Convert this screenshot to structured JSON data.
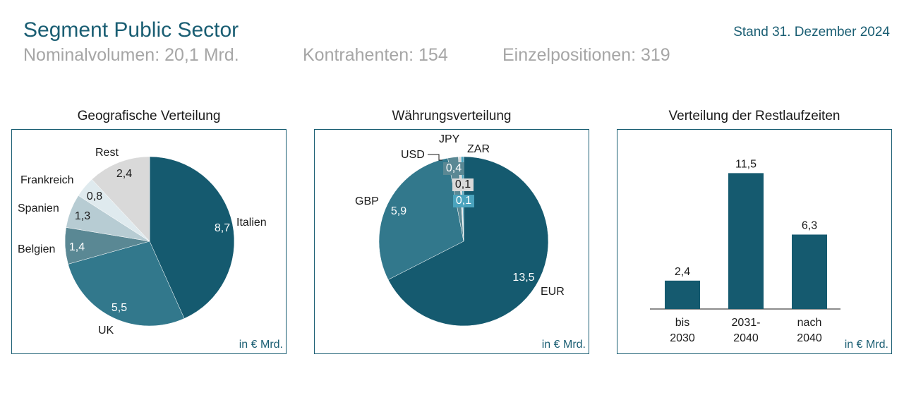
{
  "header": {
    "title": "Segment Public Sector",
    "date": "Stand 31. Dezember 2024",
    "nominal": "Nominalvolumen: 20,1 Mrd.",
    "counterparties": "Kontrahenten: 154",
    "positions": "Einzelpositionen: 319"
  },
  "panels": {
    "geo_title": "Geografische Verteilung",
    "fx_title": "Währungsverteilung",
    "mat_title": "Verteilung der Restlaufzeiten",
    "unit": "in € Mrd."
  },
  "chart_data": [
    {
      "type": "pie",
      "title": "Geografische Verteilung",
      "unit": "in € Mrd.",
      "slices": [
        {
          "label": "Italien",
          "value": 8.7,
          "value_label": "8,7",
          "color": "#155a6f"
        },
        {
          "label": "UK",
          "value": 5.5,
          "value_label": "5,5",
          "color": "#32788c"
        },
        {
          "label": "Belgien",
          "value": 1.4,
          "value_label": "1,4",
          "color": "#5a8894"
        },
        {
          "label": "Spanien",
          "value": 1.3,
          "value_label": "1,3",
          "color": "#b7ccd3"
        },
        {
          "label": "Frankreich",
          "value": 0.8,
          "value_label": "0,8",
          "color": "#dfeaee"
        },
        {
          "label": "Rest",
          "value": 2.4,
          "value_label": "2,4",
          "color": "#d9d9d9"
        }
      ]
    },
    {
      "type": "pie",
      "title": "Währungsverteilung",
      "unit": "in € Mrd.",
      "slices": [
        {
          "label": "EUR",
          "value": 13.5,
          "value_label": "13,5",
          "color": "#155a6f"
        },
        {
          "label": "GBP",
          "value": 5.9,
          "value_label": "5,9",
          "color": "#32788c"
        },
        {
          "label": "USD",
          "value": 0.4,
          "value_label": "0,4",
          "color": "#5a8894"
        },
        {
          "label": "JPY",
          "value": 0.1,
          "value_label": "0,1",
          "color": "#d9d9d9"
        },
        {
          "label": "ZAR",
          "value": 0.1,
          "value_label": "0,1",
          "color": "#4aa3bd"
        }
      ]
    },
    {
      "type": "bar",
      "title": "Verteilung der Restlaufzeiten",
      "unit": "in € Mrd.",
      "categories": [
        [
          "bis",
          "2030"
        ],
        [
          "2031-",
          "2040"
        ],
        [
          "nach",
          "2040"
        ]
      ],
      "values": [
        2.4,
        11.5,
        6.3
      ],
      "value_labels": [
        "2,4",
        "11,5",
        "6,3"
      ],
      "color": "#155a6f"
    }
  ]
}
